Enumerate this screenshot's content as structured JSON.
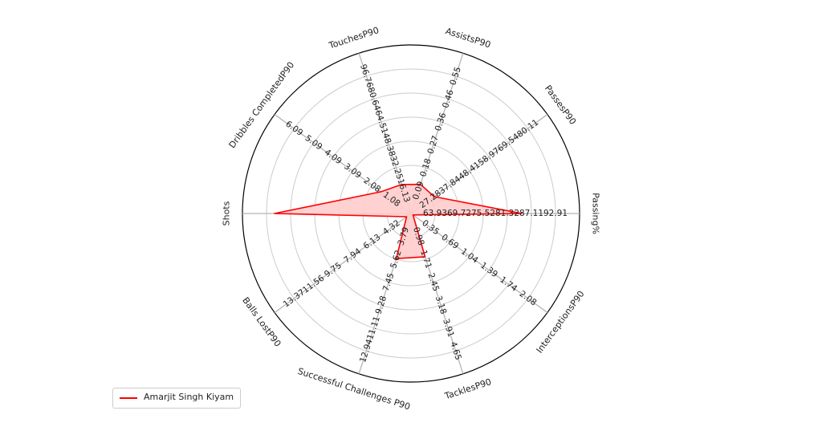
{
  "chart_data": {
    "type": "radar",
    "categories": [
      "Passing%",
      "PassesP90",
      "AssistsP90",
      "TouchesP90",
      "Dribbles CompletedP90",
      "Shots",
      "Balls LostP90",
      "Successful Challenges P90",
      "TacklesP90",
      "InterceptionsP90"
    ],
    "axes": [
      {
        "name": "Passing%",
        "min": 58.12,
        "max": 92.91,
        "ticks": [
          "63.93",
          "69.72",
          "75.52",
          "81.32",
          "87.11",
          "92.91"
        ]
      },
      {
        "name": "PassesP90",
        "min": 16.84,
        "max": 80.11,
        "ticks": [
          "27.28",
          "37.84",
          "48.41",
          "58.97",
          "69.54",
          "80.11"
        ]
      },
      {
        "name": "AssistsP90",
        "min": 0.0,
        "max": 0.55,
        "ticks": [
          "0.09",
          "0.18",
          "0.27",
          "0.36",
          "0.46",
          "0.55"
        ]
      },
      {
        "name": "TouchesP90",
        "min": 0.0,
        "max": 96.76,
        "ticks": [
          "16.13",
          "32.25",
          "48.38",
          "64.51",
          "80.64",
          "96.76"
        ]
      },
      {
        "name": "Dribbles CompletedP90",
        "min": 0.08,
        "max": 6.09,
        "ticks": [
          "1.08",
          "2.08",
          "3.09",
          "4.09",
          "5.09",
          "6.09"
        ]
      },
      {
        "name": "Shots",
        "min": 0,
        "max": 1,
        "ticks": []
      },
      {
        "name": "Balls LostP90",
        "min": 2.5,
        "max": 13.37,
        "ticks": [
          "4.32",
          "6.13",
          "7.94",
          "9.75",
          "11.56",
          "13.37"
        ]
      },
      {
        "name": "Successful Challenges P90",
        "min": 1.96,
        "max": 12.94,
        "ticks": [
          "3.79",
          "5.62",
          "7.45",
          "9.28",
          "11.11",
          "12.94"
        ]
      },
      {
        "name": "TacklesP90",
        "min": 0.24,
        "max": 4.65,
        "ticks": [
          "0.98",
          "1.71",
          "2.45",
          "3.18",
          "3.91",
          "4.65"
        ]
      },
      {
        "name": "InterceptionsP90",
        "min": 0.0,
        "max": 2.08,
        "ticks": [
          "0.35",
          "0.69",
          "1.04",
          "1.39",
          "1.74",
          "2.08"
        ]
      }
    ],
    "series": [
      {
        "name": "Amarjit Singh Kiyam",
        "values": [
          81.0,
          27.6,
          0.1,
          17.5,
          1.4,
          0.81,
          2.85,
          5.05,
          1.43,
          0.03
        ],
        "color": "#ff0000",
        "fill": "#ffcccc"
      }
    ],
    "grid": true,
    "legend_position": "lower-left"
  }
}
